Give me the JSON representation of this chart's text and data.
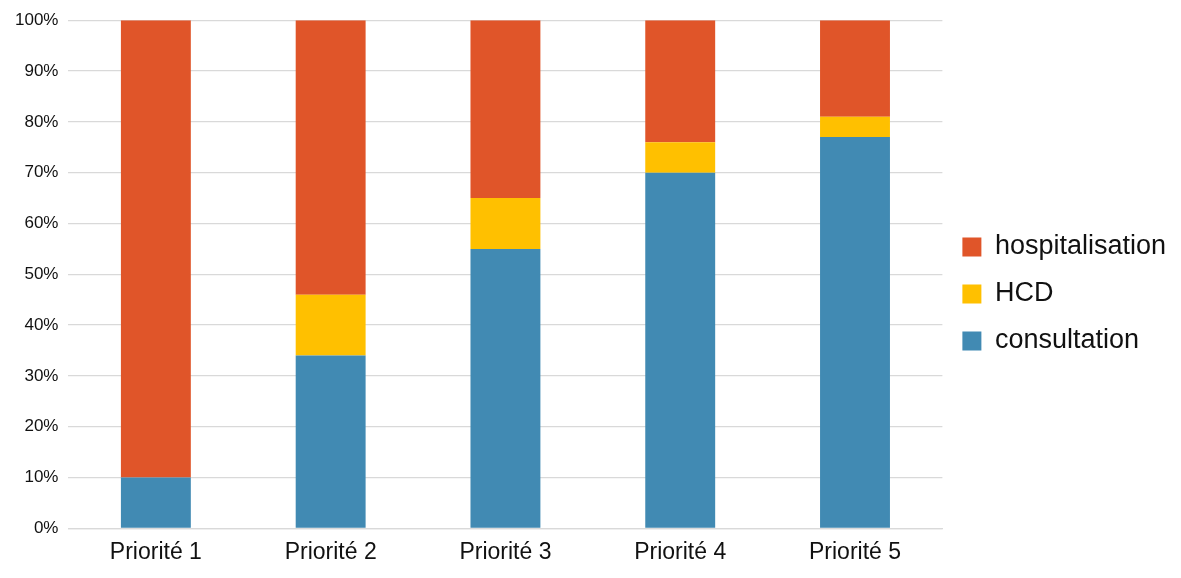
{
  "chart_data": {
    "type": "bar",
    "stacked": true,
    "categories": [
      "Priorité 1",
      "Priorité 2",
      "Priorité 3",
      "Priorité 4",
      "Priorité 5"
    ],
    "series": [
      {
        "name": "consultation",
        "color": "#418ab3",
        "values": [
          10,
          34,
          55,
          70,
          77
        ]
      },
      {
        "name": "HCD",
        "color": "#ffc000",
        "values": [
          0,
          12,
          10,
          6,
          4
        ]
      },
      {
        "name": "hospitalisation",
        "color": "#e05529",
        "values": [
          90,
          54,
          35,
          24,
          19
        ]
      }
    ],
    "ylim": [
      0,
      100
    ],
    "yticks": [
      {
        "value": 0,
        "label": "0%"
      },
      {
        "value": 10,
        "label": "10%"
      },
      {
        "value": 20,
        "label": "20%"
      },
      {
        "value": 30,
        "label": "30%"
      },
      {
        "value": 40,
        "label": "40%"
      },
      {
        "value": 50,
        "label": "50%"
      },
      {
        "value": 60,
        "label": "60%"
      },
      {
        "value": 70,
        "label": "70%"
      },
      {
        "value": 80,
        "label": "80%"
      },
      {
        "value": 90,
        "label": "90%"
      },
      {
        "value": 100,
        "label": "100%"
      }
    ],
    "grid": "y",
    "legend": "right"
  }
}
